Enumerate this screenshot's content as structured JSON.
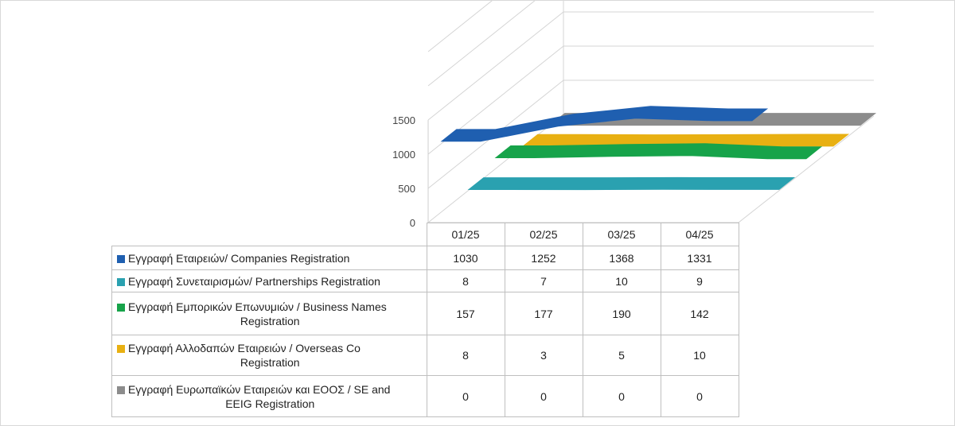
{
  "chart_data": {
    "type": "line",
    "style": "3d",
    "categories": [
      "01/25",
      "02/25",
      "03/25",
      "04/25"
    ],
    "series": [
      {
        "name": "Εγγραφή Εταιρειών/ Companies Registration",
        "values": [
          1030,
          1252,
          1368,
          1331
        ],
        "color": "#1f5fb0"
      },
      {
        "name": "Εγγραφή Συνεταιρισμών/ Partnerships Registration",
        "values": [
          8,
          7,
          10,
          9
        ],
        "color": "#2aa1b0"
      },
      {
        "name": "Εγγραφή Εμπορικών Επωνυμιών / Business Names Registration",
        "values": [
          157,
          177,
          190,
          142
        ],
        "color": "#17a34a"
      },
      {
        "name": "Εγγραφή Αλλοδαπών Εταιρειών / Overseas Co Registration",
        "values": [
          8,
          3,
          5,
          10
        ],
        "color": "#e8b012"
      },
      {
        "name": "Εγγραφή Ευρωπαϊκών Εταιρειών και ΕΟΟΣ / SE and EEIG Registration",
        "values": [
          0,
          0,
          0,
          0
        ],
        "color": "#8c8c8c"
      }
    ],
    "yticks": [
      "1500",
      "1000",
      "500",
      "0"
    ],
    "ylim": [
      0,
      1500
    ],
    "grid": true,
    "legend": "data-table"
  },
  "table": {
    "labels": [
      [
        "Εγγραφή Εταιρειών/ Companies Registration"
      ],
      [
        "Εγγραφή Συνεταιρισμών/ Partnerships Registration"
      ],
      [
        "Εγγραφή Εμπορικών Επωνυμιών / Business Names",
        "Registration"
      ],
      [
        "Εγγραφή Αλλοδαπών Εταιρειών / Overseas Co",
        "Registration"
      ],
      [
        "Εγγραφή Ευρωπαϊκών Εταιρειών και ΕΟΟΣ / SE and",
        "EEIG Registration"
      ]
    ]
  }
}
